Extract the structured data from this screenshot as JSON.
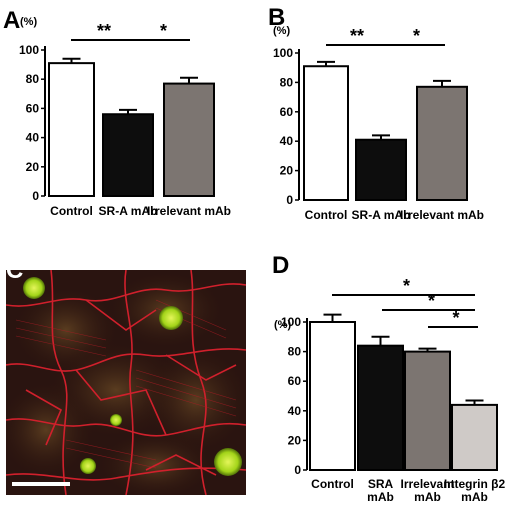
{
  "colors": {
    "white_bar": "#ffffff",
    "black_bar": "#0d0d0d",
    "gray_bar": "#7c7571",
    "light_bar": "#cfcac7",
    "actin": "#d0202c",
    "cell": "#b4e02a"
  },
  "chart_data": [
    {
      "panel": "A",
      "type": "bar",
      "unit": "(%)",
      "categories": [
        "Control",
        "SR-A mAb",
        "Irrelevant mAb"
      ],
      "values": [
        91,
        56,
        77
      ],
      "errors": [
        3,
        3,
        4
      ],
      "ylim": [
        0,
        100
      ],
      "yticks": [
        "0",
        "20",
        "40",
        "60",
        "80",
        "100"
      ],
      "significance": [
        "**",
        "*"
      ]
    },
    {
      "panel": "B",
      "type": "bar",
      "unit": "(%)",
      "categories": [
        "Control",
        "SR-A mAb",
        "Irrelevant mAb"
      ],
      "values": [
        91,
        41,
        77
      ],
      "errors": [
        3,
        3,
        4
      ],
      "ylim": [
        0,
        100
      ],
      "yticks": [
        "0",
        "20",
        "40",
        "60",
        "80",
        "100"
      ],
      "significance": [
        "**",
        "*"
      ]
    },
    {
      "panel": "D",
      "type": "bar",
      "unit": "(%)",
      "categories": [
        [
          "Control"
        ],
        [
          "SRA",
          "mAb"
        ],
        [
          "Irrelevant",
          "mAb"
        ],
        [
          "Integrin β2",
          "mAb"
        ]
      ],
      "values": [
        100,
        84,
        80,
        44
      ],
      "errors": [
        5,
        6,
        2,
        3
      ],
      "ylim": [
        0,
        100
      ],
      "yticks": [
        "0",
        "20",
        "40",
        "60",
        "80",
        "100"
      ],
      "significance": [
        "*",
        "*",
        "*"
      ]
    }
  ],
  "panel_c": {
    "label": "C"
  }
}
